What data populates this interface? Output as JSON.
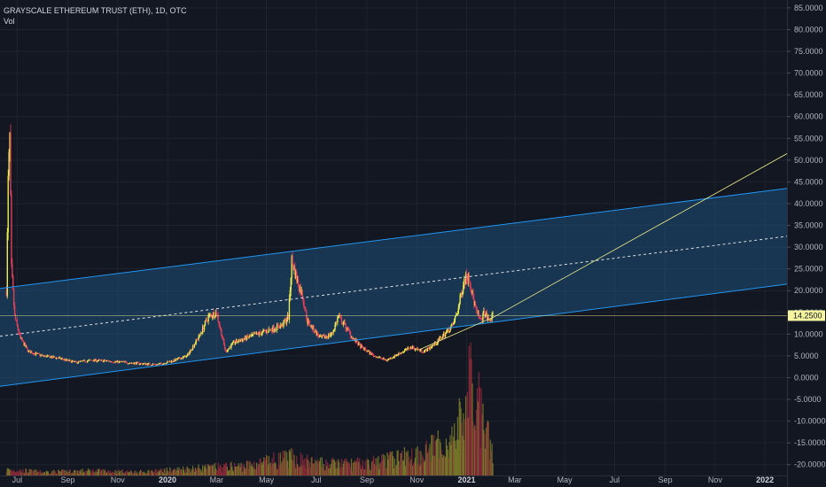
{
  "legend": {
    "symbol": "GRAYSCALE ETHEREUM TRUST (ETH), 1D, OTC",
    "volume": "Vol"
  },
  "colors": {
    "background": "#131722",
    "up": "#eaea52",
    "down": "#e0405a",
    "channel_line": "#2196f3",
    "channel_fill": "#1e5a8c",
    "trendline": "#f0f08a",
    "current_price": "#f5f5a0",
    "vol_up": "#7a7a2a",
    "vol_down": "#8a2a38"
  },
  "chart_data": {
    "type": "candlestick",
    "title": "GRAYSCALE ETHEREUM TRUST (ETH), 1D, OTC",
    "xlabel": "",
    "ylabel": "",
    "ylim": [
      -22.5,
      86
    ],
    "y_ticks": [
      "85.0000",
      "80.0000",
      "75.0000",
      "70.0000",
      "65.0000",
      "60.0000",
      "55.0000",
      "50.0000",
      "45.0000",
      "40.0000",
      "35.0000",
      "30.0000",
      "25.0000",
      "20.0000",
      "15.0000",
      "10.0000",
      "5.0000",
      "0.0000",
      "-5.0000",
      "-10.0000",
      "-15.0000",
      "-20.0000"
    ],
    "y_tick_values": [
      85,
      80,
      75,
      70,
      65,
      60,
      55,
      50,
      45,
      40,
      35,
      30,
      25,
      20,
      15,
      10,
      5,
      0,
      -5,
      -10,
      -15,
      -20
    ],
    "x_ticks": [
      {
        "label": "Jul",
        "date": "2019-07-01"
      },
      {
        "label": "Sep",
        "date": "2019-09-01"
      },
      {
        "label": "Nov",
        "date": "2019-11-01"
      },
      {
        "label": "2020",
        "date": "2020-01-01",
        "strong": true
      },
      {
        "label": "Mar",
        "date": "2020-03-01"
      },
      {
        "label": "May",
        "date": "2020-05-01"
      },
      {
        "label": "Jul",
        "date": "2020-07-01"
      },
      {
        "label": "Sep",
        "date": "2020-09-01"
      },
      {
        "label": "Nov",
        "date": "2020-11-01"
      },
      {
        "label": "2021",
        "date": "2021-01-01",
        "strong": true
      },
      {
        "label": "Mar",
        "date": "2021-03-01"
      },
      {
        "label": "May",
        "date": "2021-05-01"
      },
      {
        "label": "Jul",
        "date": "2021-07-01"
      },
      {
        "label": "Sep",
        "date": "2021-09-01"
      },
      {
        "label": "Nov",
        "date": "2021-11-01"
      },
      {
        "label": "2022",
        "date": "2022-01-01",
        "strong": true
      }
    ],
    "xlim": [
      "2019-06-10",
      "2022-01-28"
    ],
    "price_path": [
      [
        "2019-06-18",
        20
      ],
      [
        "2019-06-20",
        45
      ],
      [
        "2019-06-22",
        55
      ],
      [
        "2019-06-24",
        25
      ],
      [
        "2019-06-28",
        14
      ],
      [
        "2019-07-05",
        9
      ],
      [
        "2019-07-15",
        6
      ],
      [
        "2019-08-01",
        5
      ],
      [
        "2019-08-20",
        4.5
      ],
      [
        "2019-09-10",
        3.5
      ],
      [
        "2019-10-01",
        4
      ],
      [
        "2019-10-20",
        3.8
      ],
      [
        "2019-11-10",
        3.5
      ],
      [
        "2019-12-01",
        3.2
      ],
      [
        "2019-12-20",
        3.0
      ],
      [
        "2020-01-10",
        4
      ],
      [
        "2020-01-25",
        5
      ],
      [
        "2020-02-10",
        10
      ],
      [
        "2020-02-20",
        14
      ],
      [
        "2020-03-01",
        15
      ],
      [
        "2020-03-12",
        6
      ],
      [
        "2020-03-22",
        8
      ],
      [
        "2020-04-05",
        9
      ],
      [
        "2020-04-20",
        10
      ],
      [
        "2020-05-05",
        11
      ],
      [
        "2020-05-20",
        12
      ],
      [
        "2020-05-28",
        14
      ],
      [
        "2020-06-01",
        27
      ],
      [
        "2020-06-08",
        22
      ],
      [
        "2020-06-14",
        19
      ],
      [
        "2020-06-20",
        13
      ],
      [
        "2020-06-28",
        11
      ],
      [
        "2020-07-06",
        9
      ],
      [
        "2020-07-20",
        10
      ],
      [
        "2020-07-28",
        14
      ],
      [
        "2020-08-05",
        12
      ],
      [
        "2020-08-15",
        9
      ],
      [
        "2020-08-25",
        7
      ],
      [
        "2020-09-10",
        5
      ],
      [
        "2020-09-25",
        4
      ],
      [
        "2020-10-10",
        5.5
      ],
      [
        "2020-10-25",
        7
      ],
      [
        "2020-11-10",
        6
      ],
      [
        "2020-11-25",
        8
      ],
      [
        "2020-12-05",
        10
      ],
      [
        "2020-12-15",
        12
      ],
      [
        "2020-12-22",
        16
      ],
      [
        "2020-12-28",
        22
      ],
      [
        "2021-01-03",
        24
      ],
      [
        "2021-01-08",
        19
      ],
      [
        "2021-01-13",
        15
      ],
      [
        "2021-01-18",
        13
      ],
      [
        "2021-01-23",
        15
      ],
      [
        "2021-01-28",
        13
      ],
      [
        "2021-02-02",
        14.25
      ]
    ],
    "volume_path": [
      [
        "2019-06-18",
        0.5
      ],
      [
        "2019-08-01",
        0.3
      ],
      [
        "2019-10-01",
        0.4
      ],
      [
        "2019-12-01",
        0.3
      ],
      [
        "2020-02-01",
        0.6
      ],
      [
        "2020-04-01",
        0.8
      ],
      [
        "2020-06-01",
        1.5
      ],
      [
        "2020-07-01",
        1.0
      ],
      [
        "2020-09-01",
        1.0
      ],
      [
        "2020-11-01",
        1.8
      ],
      [
        "2020-12-15",
        3.0
      ],
      [
        "2020-12-30",
        5.5
      ],
      [
        "2021-01-05",
        9.0
      ],
      [
        "2021-01-08",
        7.0
      ],
      [
        "2021-01-15",
        6.0
      ],
      [
        "2021-01-22",
        4.0
      ],
      [
        "2021-02-02",
        2.0
      ]
    ],
    "channel": {
      "upper": [
        [
          "2019-06-10",
          20.5
        ],
        [
          "2022-01-28",
          43.5
        ]
      ],
      "middle": [
        [
          "2019-06-10",
          9.5
        ],
        [
          "2022-01-28",
          32.5
        ]
      ],
      "lower": [
        [
          "2019-06-10",
          -2
        ],
        [
          "2022-01-28",
          21.5
        ]
      ]
    },
    "trendline": [
      [
        "2020-11-05",
        6.5
      ],
      [
        "2021-02-04",
        14
      ],
      [
        "2022-01-28",
        51.5
      ]
    ],
    "current_price": 14.25,
    "current_price_label": "14.2500"
  }
}
